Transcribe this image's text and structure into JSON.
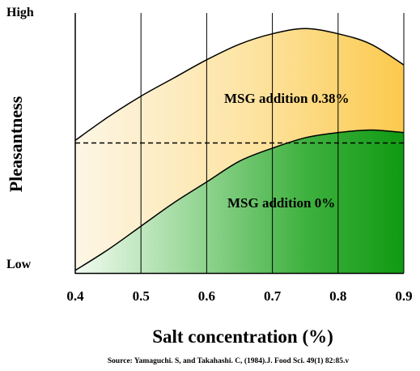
{
  "chart_data": {
    "type": "area",
    "title": "",
    "xlabel": "Salt concentration (%)",
    "ylabel": "Pleasantness",
    "y_tick_labels": {
      "high": "High",
      "low": "Low"
    },
    "x_ticks": [
      "0.4",
      "0.5",
      "0.6",
      "0.7",
      "0.8",
      "0.9"
    ],
    "xlim": [
      0.4,
      0.9
    ],
    "ylim": [
      0,
      1
    ],
    "grid": "vertical",
    "reference_line": {
      "style": "dashed",
      "y": 0.5
    },
    "series": [
      {
        "name": "MSG addition 0.38%",
        "x": [
          0.4,
          0.45,
          0.5,
          0.55,
          0.6,
          0.65,
          0.7,
          0.75,
          0.8,
          0.85,
          0.9
        ],
        "y": [
          0.51,
          0.6,
          0.68,
          0.75,
          0.82,
          0.88,
          0.92,
          0.94,
          0.92,
          0.88,
          0.8
        ],
        "color": "#fcc94d"
      },
      {
        "name": "MSG addition 0%",
        "x": [
          0.4,
          0.45,
          0.5,
          0.55,
          0.6,
          0.65,
          0.7,
          0.75,
          0.8,
          0.85,
          0.9
        ],
        "y": [
          0.01,
          0.09,
          0.18,
          0.27,
          0.35,
          0.43,
          0.48,
          0.52,
          0.54,
          0.55,
          0.54
        ],
        "color": "#149e14"
      }
    ],
    "source": "Source: Yamaguchi. S, and Takahashi. C, (1984).J. Food Sci. 49(1) 82:85.v"
  }
}
